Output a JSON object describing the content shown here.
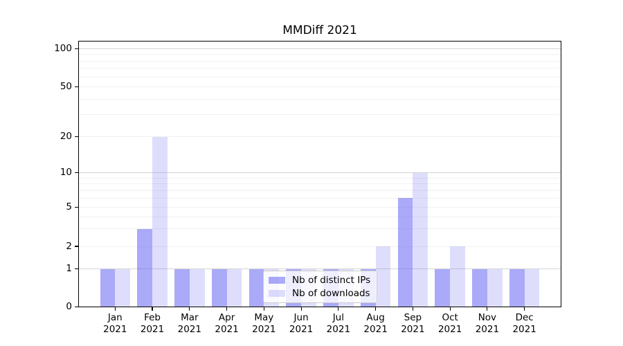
{
  "chart_data": {
    "type": "bar",
    "title": "MMDiff 2021",
    "categories": [
      {
        "month": "Jan",
        "year": "2021"
      },
      {
        "month": "Feb",
        "year": "2021"
      },
      {
        "month": "Mar",
        "year": "2021"
      },
      {
        "month": "Apr",
        "year": "2021"
      },
      {
        "month": "May",
        "year": "2021"
      },
      {
        "month": "Jun",
        "year": "2021"
      },
      {
        "month": "Jul",
        "year": "2021"
      },
      {
        "month": "Aug",
        "year": "2021"
      },
      {
        "month": "Sep",
        "year": "2021"
      },
      {
        "month": "Oct",
        "year": "2021"
      },
      {
        "month": "Nov",
        "year": "2021"
      },
      {
        "month": "Dec",
        "year": "2021"
      }
    ],
    "series": [
      {
        "name": "Nb of distinct IPs",
        "color": "rgba(100,100,242,0.55)",
        "values": [
          1,
          3,
          1,
          1,
          1,
          1,
          1,
          1,
          6,
          1,
          1,
          1
        ]
      },
      {
        "name": "Nb of downloads",
        "color": "rgba(100,100,242,0.21)",
        "values": [
          1,
          20,
          1,
          1,
          1,
          1,
          1,
          2,
          10,
          2,
          1,
          1
        ]
      }
    ],
    "yticks": [
      0,
      1,
      2,
      5,
      10,
      20,
      50,
      100
    ],
    "ylim": [
      0,
      100
    ],
    "xlabel": "",
    "ylabel": "",
    "scale": "symlog",
    "grid": true,
    "legend_position": "inside-bottom-center"
  }
}
